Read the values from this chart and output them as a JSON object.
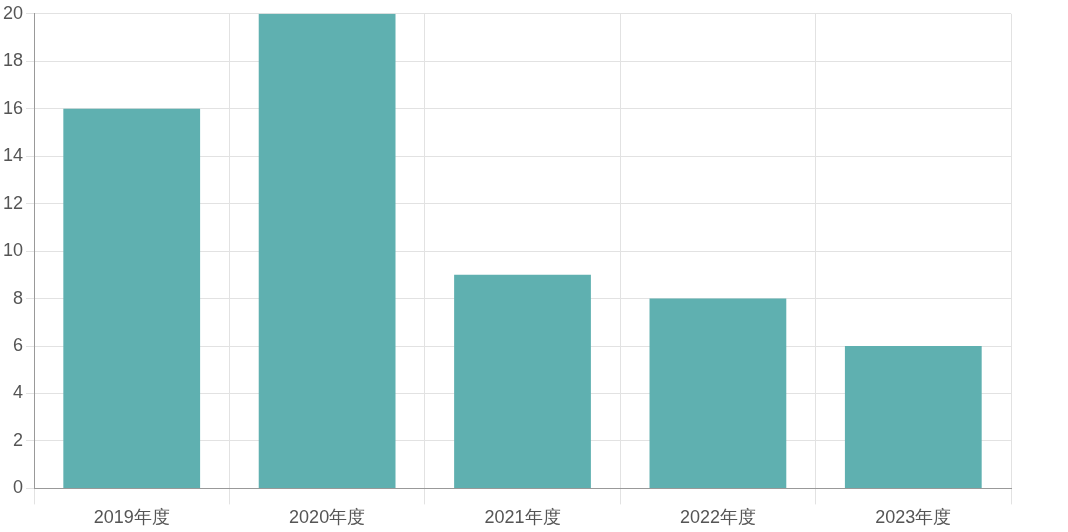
{
  "chart_data": {
    "type": "bar",
    "categories": [
      "2019年度",
      "2020年度",
      "2021年度",
      "2022年度",
      "2023年度"
    ],
    "values": [
      16,
      20,
      9,
      8,
      6
    ],
    "color": "#5fb0b0",
    "ylim": [
      0,
      20
    ],
    "yticks": [
      0,
      2,
      4,
      6,
      8,
      10,
      12,
      14,
      16,
      18,
      20
    ],
    "grid": true
  }
}
